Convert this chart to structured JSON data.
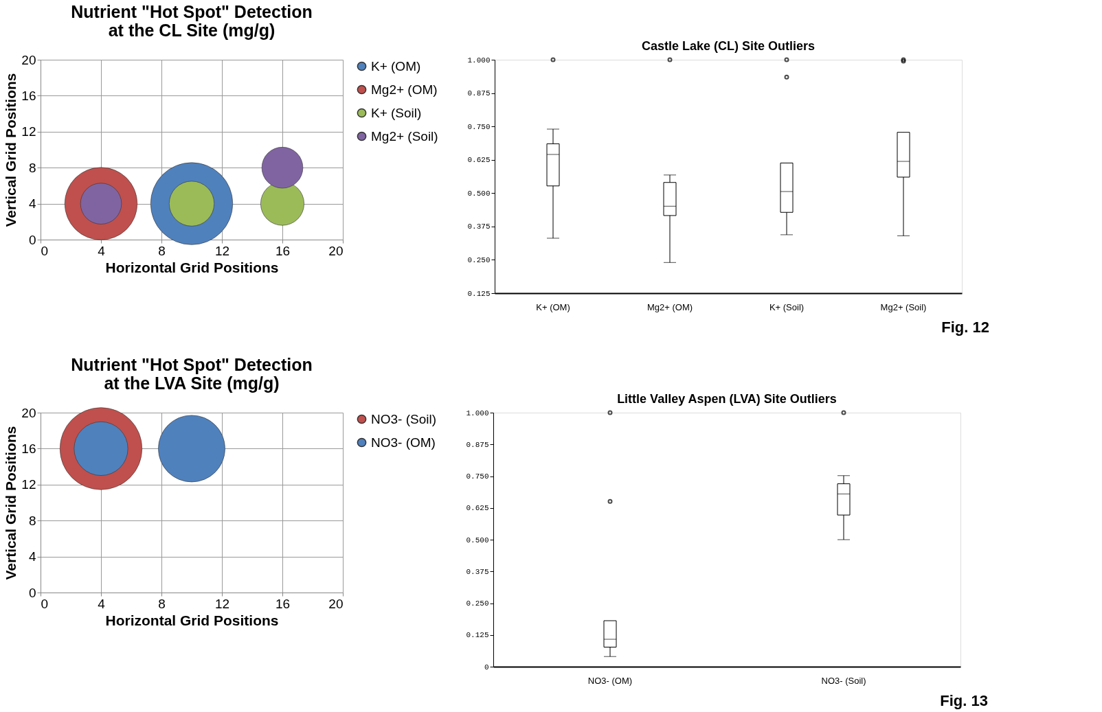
{
  "chart_data": [
    {
      "type": "bubble",
      "title": "Nutrient \"Hot Spot\" Detection at the CL Site (mg/g)",
      "xlabel": "Horizontal Grid Positions",
      "ylabel": "Vertical Grid Positions",
      "xlim": [
        0,
        20
      ],
      "ylim": [
        0,
        20
      ],
      "xticks": [
        0,
        4,
        8,
        12,
        16,
        20
      ],
      "yticks": [
        0,
        4,
        8,
        12,
        16,
        20
      ],
      "grid": true,
      "legend": "right",
      "series": [
        {
          "name": "K+ (OM)",
          "color": "#4f81bd",
          "x": [
            10
          ],
          "values": [
            4
          ],
          "sizes": [
            1
          ]
        },
        {
          "name": "Mg2+ (OM)",
          "color": "#c0504d",
          "x": [
            4
          ],
          "values": [
            4
          ],
          "sizes": [
            0.78
          ]
        },
        {
          "name": "K+ (Soil)",
          "color": "#9bbb59",
          "x": [
            10,
            16
          ],
          "values": [
            4,
            4
          ],
          "sizes": [
            0.3,
            0.28
          ]
        },
        {
          "name": "Mg2+ (Soil)",
          "color": "#8064a2",
          "x": [
            4,
            16
          ],
          "values": [
            4,
            8
          ],
          "sizes": [
            0.25,
            0.25
          ]
        }
      ]
    },
    {
      "type": "box",
      "title": "Castle Lake (CL) Site Outliers",
      "categories": [
        "K+ (OM)",
        "Mg2+ (OM)",
        "K+ (Soil)",
        "Mg2+  (Soil)"
      ],
      "ylim": [
        0.125,
        1.0
      ],
      "yticks": [
        {
          "value": 0.125,
          "label": "0.125"
        },
        {
          "value": 0.25,
          "label": "0.250"
        },
        {
          "value": 0.375,
          "label": "0.375"
        },
        {
          "value": 0.5,
          "label": "0.500"
        },
        {
          "value": 0.625,
          "label": "0.625"
        },
        {
          "value": 0.75,
          "label": "0.750"
        },
        {
          "value": 0.875,
          "label": "0.875"
        },
        {
          "value": 1.0,
          "label": "1.000"
        }
      ],
      "annotations": [
        "Fig. 12"
      ],
      "boxes": [
        {
          "low": 0.331,
          "q1": 0.527,
          "median": 0.645,
          "q3": 0.685,
          "high": 0.74,
          "outliers": [
            1.0
          ]
        },
        {
          "low": 0.24,
          "q1": 0.416,
          "median": 0.451,
          "q3": 0.54,
          "high": 0.568,
          "outliers": [
            1.0
          ]
        },
        {
          "low": 0.344,
          "q1": 0.428,
          "median": 0.506,
          "q3": 0.613,
          "high": 0.613,
          "outliers": [
            1.0,
            0.935
          ]
        },
        {
          "low": 0.34,
          "q1": 0.56,
          "median": 0.619,
          "q3": 0.728,
          "high": 0.728,
          "outliers": [
            1.0,
            0.995
          ]
        }
      ]
    },
    {
      "type": "bubble",
      "title": "Nutrient \"Hot Spot\" Detection at the LVA Site (mg/g)",
      "xlabel": "Horizontal Grid Positions",
      "ylabel": "Vertical Grid Positions",
      "xlim": [
        0,
        20
      ],
      "ylim": [
        0,
        20
      ],
      "xticks": [
        0,
        4,
        8,
        12,
        16,
        20
      ],
      "yticks": [
        0,
        4,
        8,
        12,
        16,
        20
      ],
      "grid": true,
      "legend": "right",
      "series": [
        {
          "name": "NO3- (Soil)",
          "color": "#c0504d",
          "x": [
            4
          ],
          "values": [
            16
          ],
          "sizes": [
            1
          ]
        },
        {
          "name": "NO3- (OM)",
          "color": "#4f81bd",
          "x": [
            4,
            10
          ],
          "values": [
            16,
            16
          ],
          "sizes": [
            0.43,
            0.66
          ]
        }
      ]
    },
    {
      "type": "box",
      "title": "Little Valley Aspen (LVA) Site Outliers",
      "categories": [
        "NO3- (OM)",
        "NO3- (Soil)"
      ],
      "ylim": [
        0,
        1.0
      ],
      "yticks": [
        {
          "value": 0,
          "label": "0"
        },
        {
          "value": 0.125,
          "label": "0.125"
        },
        {
          "value": 0.25,
          "label": "0.250"
        },
        {
          "value": 0.375,
          "label": "0.375"
        },
        {
          "value": 0.5,
          "label": "0.500"
        },
        {
          "value": 0.625,
          "label": "0.625"
        },
        {
          "value": 0.75,
          "label": "0.750"
        },
        {
          "value": 0.875,
          "label": "0.875"
        },
        {
          "value": 1.0,
          "label": "1.000"
        }
      ],
      "annotations": [
        "Fig. 13"
      ],
      "boxes": [
        {
          "low": 0.04,
          "q1": 0.077,
          "median": 0.108,
          "q3": 0.181,
          "high": 0.181,
          "outliers": [
            1.0,
            0.651
          ]
        },
        {
          "low": 0.5,
          "q1": 0.597,
          "median": 0.68,
          "q3": 0.72,
          "high": 0.752,
          "outliers": [
            1.0
          ]
        }
      ]
    }
  ]
}
